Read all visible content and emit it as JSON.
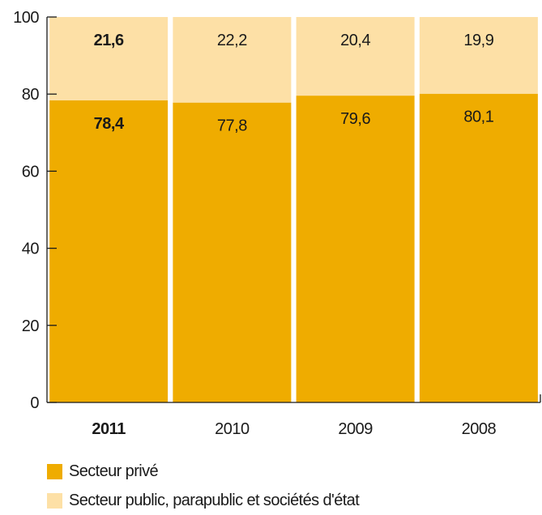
{
  "chart_data": {
    "type": "bar",
    "stacked": true,
    "categories": [
      "2011",
      "2010",
      "2009",
      "2008"
    ],
    "highlight_category": "2011",
    "series": [
      {
        "name": "Secteur privé",
        "values": [
          78.4,
          77.8,
          79.6,
          80.1
        ],
        "labels": [
          "78,4",
          "77,8",
          "79,6",
          "80,1"
        ],
        "color": "#efac00"
      },
      {
        "name": "Secteur public, parapublic et sociétés d'état",
        "values": [
          21.6,
          22.2,
          20.4,
          19.9
        ],
        "labels": [
          "21,6",
          "22,2",
          "20,4",
          "19,9"
        ],
        "color": "#fde0a6"
      }
    ],
    "ylim": [
      0,
      100
    ],
    "yticks": [
      0,
      20,
      40,
      60,
      80,
      100
    ],
    "legend_position": "bottom-left",
    "grid": false
  },
  "legend": {
    "item1": "Secteur privé",
    "item2": "Secteur public, parapublic et sociétés d'état"
  },
  "colors": {
    "axis": "#1a1a1a",
    "text": "#1a1a1a"
  }
}
